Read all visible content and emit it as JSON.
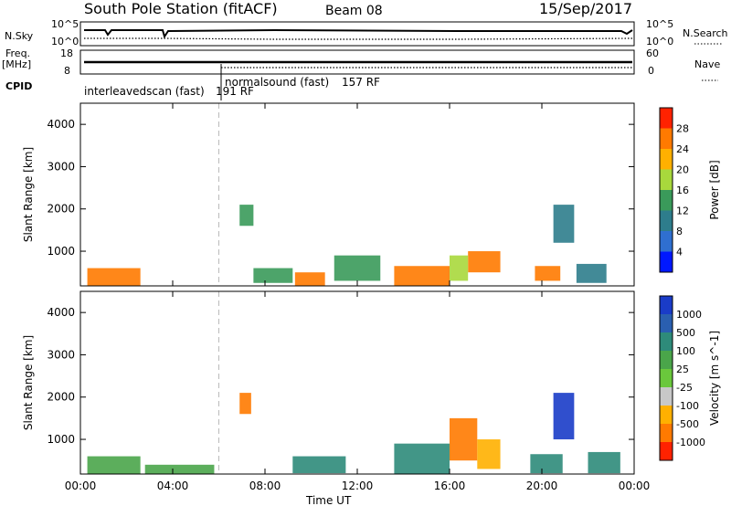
{
  "header": {
    "station": "South Pole Station (fitACF)",
    "beam": "Beam 08",
    "date": "15/Sep/2017"
  },
  "left_labels": {
    "nsky": "N.Sky",
    "freq": "Freq.",
    "freq_unit": "[MHz]",
    "cpid": "CPID"
  },
  "right_labels": {
    "nsearch": "N.Search",
    "nave": "Nave"
  },
  "noise_axis": {
    "left_ticks": [
      "10^5",
      "10^0"
    ],
    "right_ticks": [
      "10^5",
      "10^0"
    ]
  },
  "freq_axis": {
    "left_ticks": [
      "18",
      "8"
    ],
    "right_ticks": [
      "60",
      "0"
    ]
  },
  "cpid_segments": [
    {
      "label": "interleavedscan (fast)",
      "code": "191 RF",
      "start_hour": 0,
      "end_hour": 6
    },
    {
      "label": "normalsound (fast)",
      "code": "157 RF",
      "start_hour": 6,
      "end_hour": 24
    }
  ],
  "chart_data": [
    {
      "type": "heatmap",
      "panel": "power",
      "ylabel": "Slant Range [km]",
      "ylim": [
        180,
        4500
      ],
      "xlim": [
        0,
        24
      ],
      "y_ticks": [
        1000,
        2000,
        3000,
        4000
      ],
      "colorbar_label": "Power [dB]",
      "colorbar_ticks": [
        "4",
        "8",
        "12",
        "16",
        "20",
        "24",
        "28"
      ],
      "colors": [
        "#0018ff",
        "#2f6fd0",
        "#2e7d8c",
        "#3a9a5a",
        "#a8d83c",
        "#ffb000",
        "#ff7a00",
        "#ff2200"
      ],
      "patches": [
        {
          "x0": 0.3,
          "x1": 2.6,
          "y0": 180,
          "y1": 600,
          "level": 6
        },
        {
          "x0": 9.3,
          "x1": 10.6,
          "y0": 180,
          "y1": 500,
          "level": 6
        },
        {
          "x0": 13.6,
          "x1": 16.0,
          "y0": 180,
          "y1": 650,
          "level": 6
        },
        {
          "x0": 16.8,
          "x1": 18.2,
          "y0": 500,
          "y1": 1000,
          "level": 6
        },
        {
          "x0": 19.7,
          "x1": 20.8,
          "y0": 300,
          "y1": 650,
          "level": 6
        },
        {
          "x0": 6.9,
          "x1": 7.5,
          "y0": 1600,
          "y1": 2100,
          "level": 3
        },
        {
          "x0": 20.5,
          "x1": 21.4,
          "y0": 1200,
          "y1": 2100,
          "level": 2
        },
        {
          "x0": 11.0,
          "x1": 13.0,
          "y0": 300,
          "y1": 900,
          "level": 3
        },
        {
          "x0": 16.0,
          "x1": 16.8,
          "y0": 300,
          "y1": 900,
          "level": 4
        },
        {
          "x0": 7.5,
          "x1": 9.2,
          "y0": 250,
          "y1": 600,
          "level": 3
        },
        {
          "x0": 21.5,
          "x1": 22.8,
          "y0": 250,
          "y1": 700,
          "level": 2
        }
      ]
    },
    {
      "type": "heatmap",
      "panel": "velocity",
      "ylabel": "Slant Range [km]",
      "ylim": [
        180,
        4500
      ],
      "xlim": [
        0,
        24
      ],
      "y_ticks": [
        1000,
        2000,
        3000,
        4000
      ],
      "x_ticks": [
        "00:00",
        "04:00",
        "08:00",
        "12:00",
        "16:00",
        "20:00",
        "00:00"
      ],
      "xlabel": "Time UT",
      "colorbar_label": "Velocity [m s^-1]",
      "colorbar_ticks": [
        "1000",
        "500",
        "100",
        "25",
        "-25",
        "-100",
        "-500",
        "-1000"
      ],
      "colors": [
        "#1a3cc8",
        "#2a5fb0",
        "#2e8b7a",
        "#4aa54a",
        "#6ac83c",
        "#c8c8c8",
        "#ffb000",
        "#ff7a00",
        "#ff2200"
      ],
      "patches": [
        {
          "x0": 0.3,
          "x1": 2.6,
          "y0": 180,
          "y1": 600,
          "level": 3
        },
        {
          "x0": 2.8,
          "x1": 5.8,
          "y0": 180,
          "y1": 400,
          "level": 3
        },
        {
          "x0": 6.9,
          "x1": 7.4,
          "y0": 1600,
          "y1": 2100,
          "level": 7
        },
        {
          "x0": 13.6,
          "x1": 16.0,
          "y0": 180,
          "y1": 900,
          "level": 2
        },
        {
          "x0": 16.0,
          "x1": 17.2,
          "y0": 500,
          "y1": 1500,
          "level": 7
        },
        {
          "x0": 17.2,
          "x1": 18.2,
          "y0": 300,
          "y1": 1000,
          "level": 6
        },
        {
          "x0": 20.5,
          "x1": 21.4,
          "y0": 1000,
          "y1": 2100,
          "level": 0
        },
        {
          "x0": 19.5,
          "x1": 20.9,
          "y0": 200,
          "y1": 650,
          "level": 2
        },
        {
          "x0": 9.2,
          "x1": 11.5,
          "y0": 200,
          "y1": 600,
          "level": 2
        },
        {
          "x0": 22.0,
          "x1": 23.4,
          "y0": 200,
          "y1": 700,
          "level": 2
        }
      ]
    }
  ]
}
